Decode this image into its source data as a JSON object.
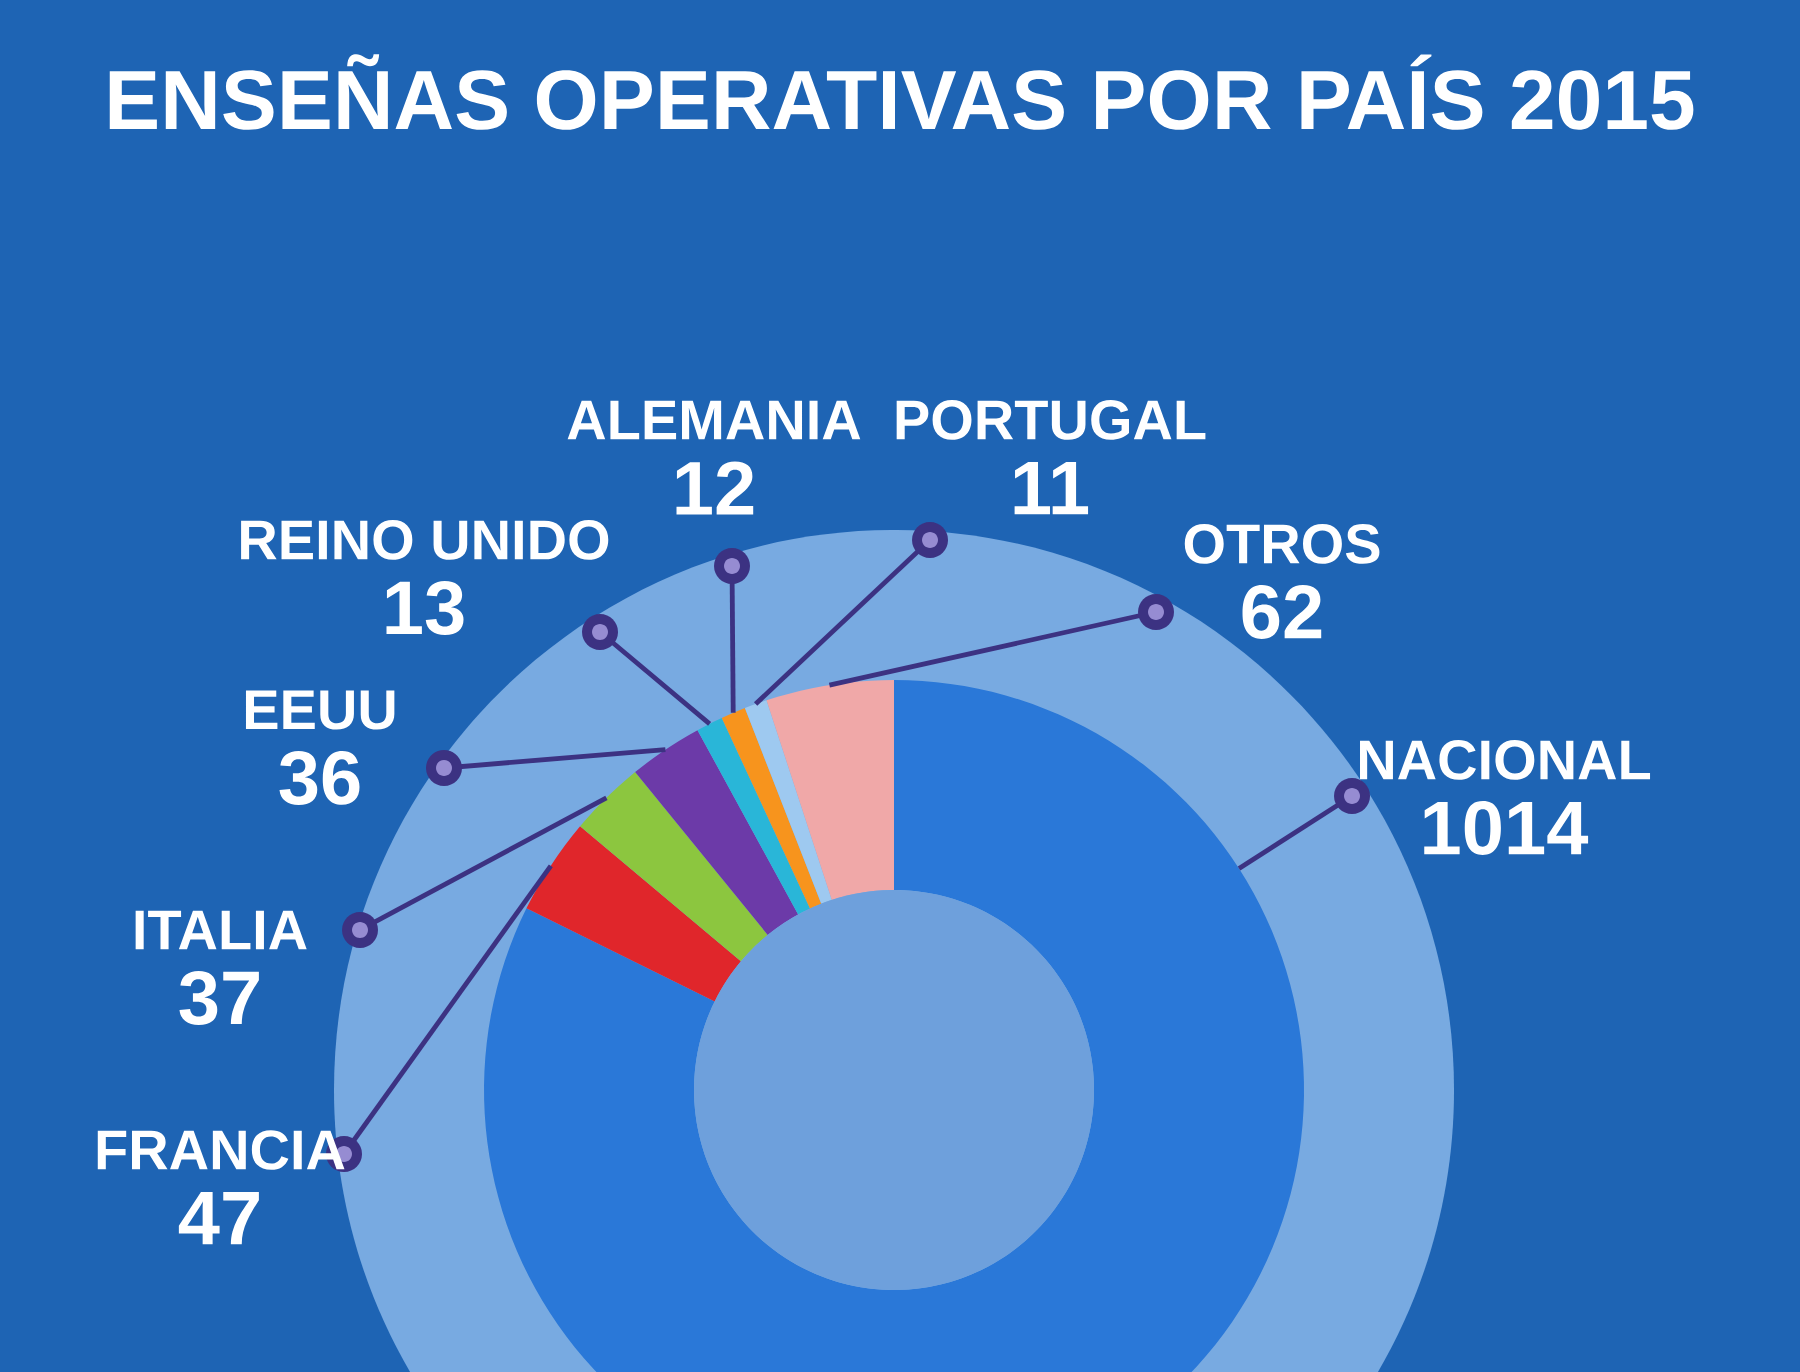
{
  "chart_data": {
    "type": "donut",
    "title": "ENSEÑAS OPERATIVAS POR PAÍS 2015",
    "categories": [
      "NACIONAL",
      "FRANCIA",
      "ITALIA",
      "EEUU",
      "REINO UNIDO",
      "ALEMANIA",
      "PORTUGAL",
      "OTROS"
    ],
    "values": [
      1014,
      47,
      37,
      36,
      13,
      12,
      11,
      62
    ],
    "colors": [
      "#2a78d8",
      "#e0262b",
      "#8cc63f",
      "#6c3aa8",
      "#29b6d8",
      "#f7941d",
      "#9ec9f0",
      "#f0a8a8"
    ],
    "data_labels": true
  }
}
